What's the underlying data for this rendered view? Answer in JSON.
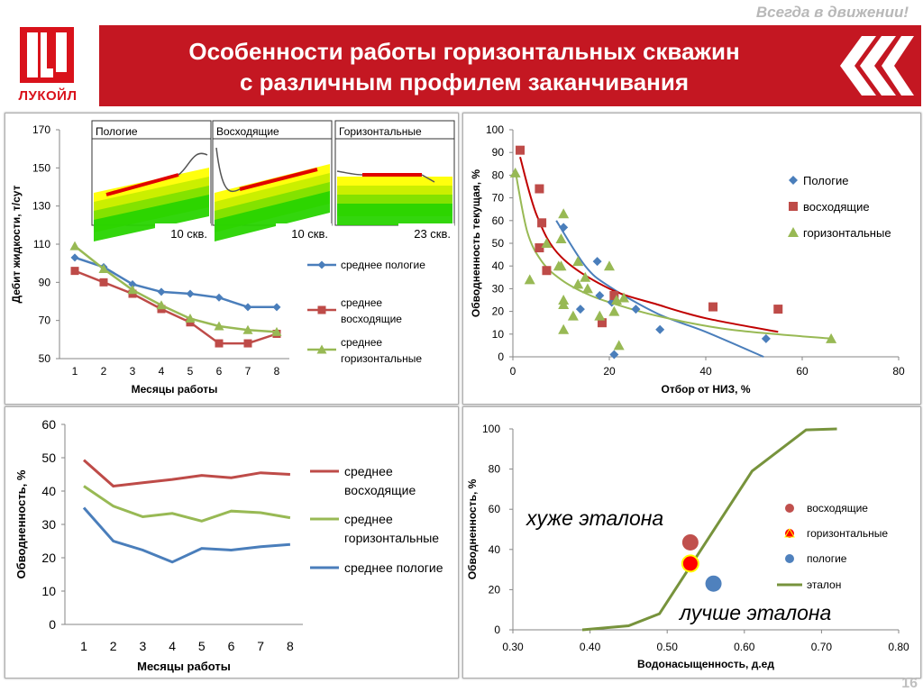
{
  "header": {
    "motto": "Всегда в движении!",
    "logo_text": "ЛУКОЙЛ",
    "title_line1": "Особенности работы горизонтальных скважин",
    "title_line2": "с различным профилем заканчивания",
    "brand_color": "#c41722"
  },
  "page_number": "16",
  "chart_data": [
    {
      "type": "line",
      "xlabel": "Месяцы работы",
      "ylabel": "Дебит жидкости, т/сут",
      "ylim": [
        50,
        170
      ],
      "yticks": [
        50,
        70,
        90,
        110,
        130,
        150,
        170
      ],
      "categories": [
        1,
        2,
        3,
        4,
        5,
        6,
        7,
        8
      ],
      "legend_position": "right",
      "series": [
        {
          "name": "среднее пологие",
          "color": "#4a7ebb",
          "marker": "diamond",
          "values": [
            103,
            98,
            89,
            85,
            84,
            82,
            77,
            77
          ]
        },
        {
          "name": "среднее восходящие",
          "color": "#be4b48",
          "marker": "square",
          "values": [
            96,
            90,
            84,
            76,
            69,
            58,
            58,
            63
          ]
        },
        {
          "name": "среднее горизонтальные",
          "color": "#98b954",
          "marker": "triangle",
          "values": [
            109,
            97,
            86,
            78,
            71,
            67,
            65,
            64
          ]
        }
      ],
      "inset_labels": [
        "Пологие",
        "Восходящие",
        "Горизонтальные"
      ],
      "inset_counts": [
        "10 скв.",
        "10 скв.",
        "23 скв."
      ]
    },
    {
      "type": "scatter",
      "xlabel": "Отбор от НИЗ, %",
      "ylabel": "Обводненность текущая, %",
      "xlim": [
        0,
        80
      ],
      "ylim": [
        0,
        100
      ],
      "xticks": [
        0,
        20,
        40,
        60,
        80
      ],
      "yticks": [
        0,
        10,
        20,
        30,
        40,
        50,
        60,
        70,
        80,
        90,
        100
      ],
      "legend_position": "right",
      "series": [
        {
          "name": "Пологие",
          "color": "#4a7ebb",
          "marker": "diamond",
          "points": [
            [
              10.5,
              57
            ],
            [
              17.5,
              42
            ],
            [
              14,
              21
            ],
            [
              18,
              27
            ],
            [
              20.5,
              24
            ],
            [
              21,
              1
            ],
            [
              25.5,
              21
            ],
            [
              30.5,
              12
            ],
            [
              52.5,
              8
            ]
          ],
          "trend": [
            [
              9,
              60
            ],
            [
              15,
              40
            ],
            [
              20,
              31
            ],
            [
              30,
              19
            ],
            [
              40,
              11
            ],
            [
              52,
              0
            ]
          ]
        },
        {
          "name": "восходящие",
          "color": "#be4b48",
          "marker": "square",
          "points": [
            [
              1.5,
              91
            ],
            [
              5.5,
              74
            ],
            [
              6,
              59
            ],
            [
              5.5,
              48
            ],
            [
              7,
              38
            ],
            [
              18.5,
              15
            ],
            [
              21,
              27
            ],
            [
              41.5,
              22
            ],
            [
              55,
              21
            ]
          ],
          "trend": [
            [
              1.5,
              88
            ],
            [
              5,
              62
            ],
            [
              10,
              44
            ],
            [
              20,
              30
            ],
            [
              30,
              23
            ],
            [
              40,
              17
            ],
            [
              55,
              11
            ]
          ]
        },
        {
          "name": "горизонтальные",
          "color": "#98b954",
          "marker": "triangle",
          "points": [
            [
              0.5,
              81
            ],
            [
              3.5,
              34
            ],
            [
              7,
              50
            ],
            [
              9.5,
              40
            ],
            [
              10,
              40
            ],
            [
              10.5,
              63
            ],
            [
              10,
              52
            ],
            [
              10.5,
              23
            ],
            [
              10.5,
              25
            ],
            [
              10.5,
              12
            ],
            [
              12.5,
              18
            ],
            [
              13.5,
              32
            ],
            [
              13.5,
              42
            ],
            [
              15,
              35
            ],
            [
              15.5,
              30
            ],
            [
              18,
              18
            ],
            [
              20,
              40
            ],
            [
              21,
              20
            ],
            [
              21.5,
              25
            ],
            [
              22,
              5
            ],
            [
              23,
              26
            ],
            [
              66,
              8
            ]
          ],
          "trend": [
            [
              0.5,
              82
            ],
            [
              3,
              55
            ],
            [
              6,
              42
            ],
            [
              10,
              34
            ],
            [
              15,
              28
            ],
            [
              20,
              24
            ],
            [
              30,
              18
            ],
            [
              45,
              12
            ],
            [
              66,
              8
            ]
          ]
        }
      ]
    },
    {
      "type": "line",
      "xlabel": "Месяцы работы",
      "ylabel": "Обводненность, %",
      "ylim": [
        0,
        60
      ],
      "yticks": [
        0,
        10,
        20,
        30,
        40,
        50,
        60
      ],
      "categories": [
        1,
        2,
        3,
        4,
        5,
        6,
        7,
        8
      ],
      "legend_position": "right",
      "series": [
        {
          "name": "среднее восходящие",
          "color": "#be4b48",
          "values": [
            49.3,
            41.5,
            42.5,
            43.5,
            44.7,
            44,
            45.5,
            45
          ]
        },
        {
          "name": "среднее горизонтальные",
          "color": "#98b954",
          "values": [
            41.5,
            35.5,
            32.3,
            33.3,
            31,
            34,
            33.5,
            32
          ]
        },
        {
          "name": "среднее пологие",
          "color": "#4a7ebb",
          "values": [
            35,
            25,
            22.3,
            18.7,
            22.8,
            22.3,
            23.3,
            24
          ]
        }
      ]
    },
    {
      "type": "scatter",
      "xlabel": "Водонасыщенность,  д.ед",
      "ylabel": "Обводненность, %",
      "xlim": [
        0.3,
        0.8
      ],
      "ylim": [
        0,
        100
      ],
      "xticks": [
        "0.30",
        "0.40",
        "0.50",
        "0.60",
        "0.70",
        "0.80"
      ],
      "yticks": [
        0,
        20,
        40,
        60,
        80,
        100
      ],
      "legend_position": "right",
      "annotations": {
        "worse": "хуже эталона",
        "better": "лучше эталона"
      },
      "series": [
        {
          "name": "восходящие",
          "color": "#c0504d",
          "marker": "circle",
          "points": [
            [
              0.53,
              43.5
            ]
          ]
        },
        {
          "name": "горизонтальные",
          "color": "#ff0000",
          "marker": "circle-ring",
          "points": [
            [
              0.53,
              33
            ]
          ]
        },
        {
          "name": "пологие",
          "color": "#4f81bd",
          "marker": "circle",
          "points": [
            [
              0.56,
              23
            ]
          ]
        },
        {
          "name": "эталон",
          "color": "#77933c",
          "marker": "line",
          "points": [
            [
              0.39,
              0
            ],
            [
              0.45,
              2
            ],
            [
              0.49,
              8
            ],
            [
              0.61,
              79
            ],
            [
              0.68,
              99.5
            ],
            [
              0.72,
              100
            ]
          ]
        }
      ]
    }
  ]
}
